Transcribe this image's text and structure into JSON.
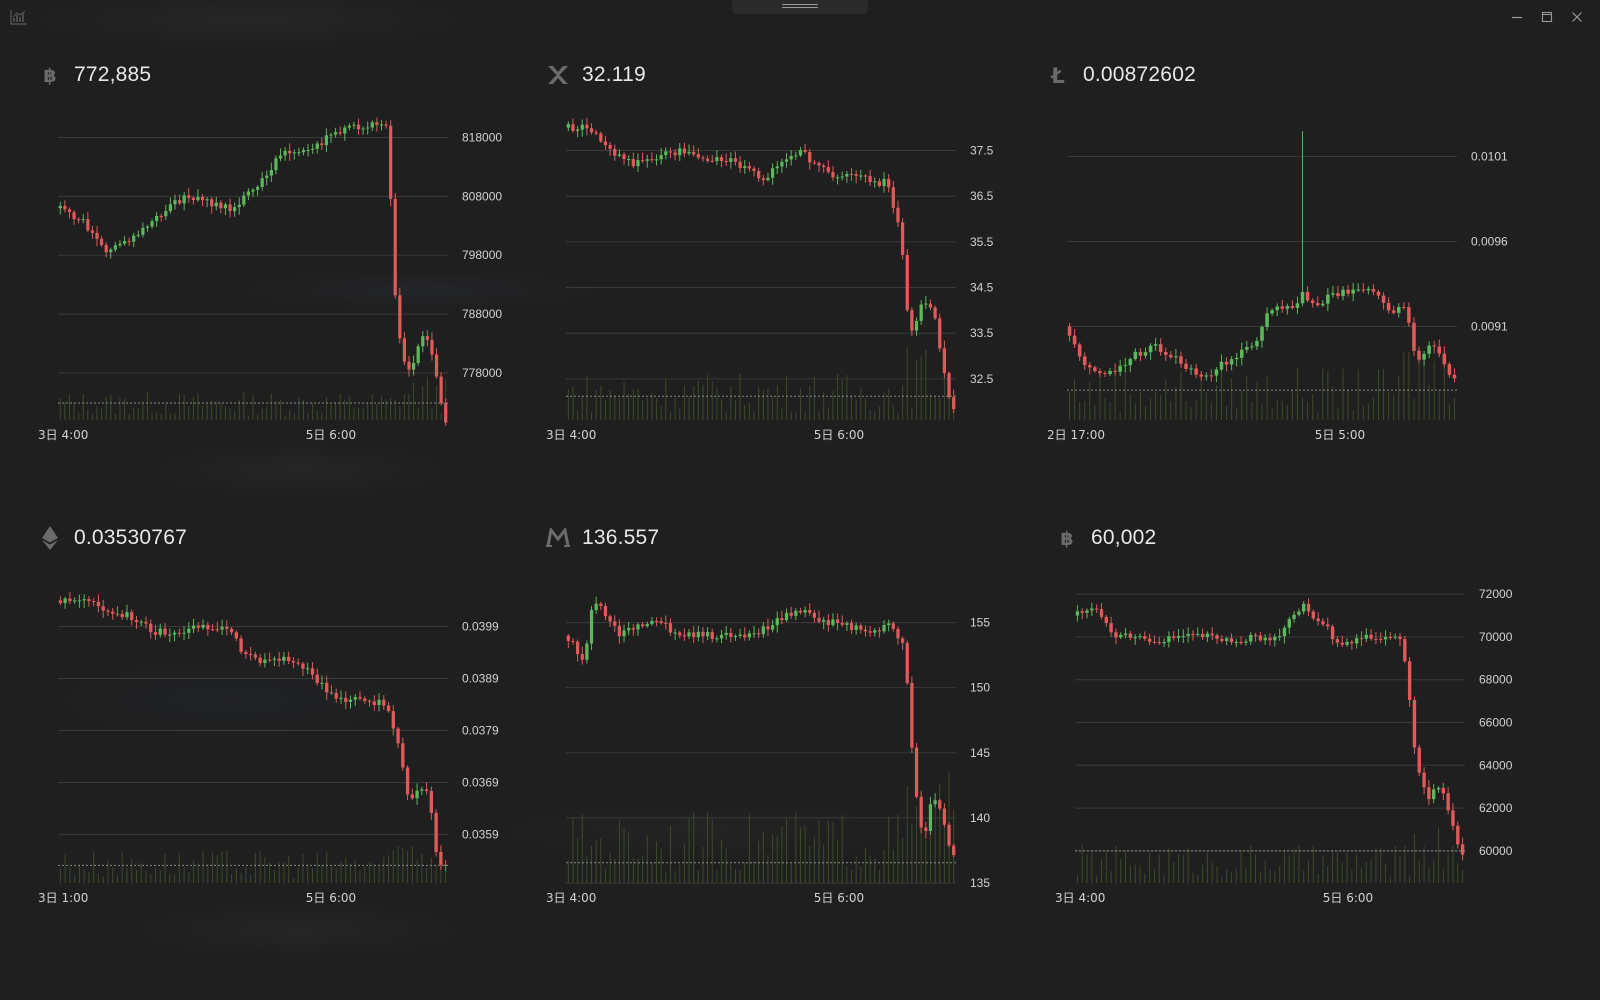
{
  "window": {
    "app_icon": "chart-icon",
    "controls": [
      "minimize-icon",
      "maximize-icon",
      "close-icon"
    ]
  },
  "colors": {
    "background": "#1f1f1f",
    "up": "#5cb85c",
    "down": "#e05a5a",
    "grid": "#3a3a3a",
    "text": "#e8e8e8",
    "volume": "#3b4a2c"
  },
  "panels": [
    {
      "icon": "bitcoin-icon",
      "price": "772,885",
      "chart_data": {
        "type": "candlestick",
        "y_ticks": [
          "818000",
          "808000",
          "798000",
          "788000",
          "778000"
        ],
        "y_tick_values": [
          818000,
          808000,
          798000,
          788000,
          778000
        ],
        "ylim": [
          770000,
          822000
        ],
        "x_ticks": [
          "3日 4:00",
          "5日 6:00"
        ],
        "last_price": 772885,
        "anchors": [
          [
            0,
            806000
          ],
          [
            5,
            804000
          ],
          [
            10,
            799000
          ],
          [
            14,
            800000
          ],
          [
            18,
            802000
          ],
          [
            22,
            805000
          ],
          [
            28,
            808000
          ],
          [
            33,
            807000
          ],
          [
            38,
            806000
          ],
          [
            44,
            810000
          ],
          [
            48,
            815000
          ],
          [
            52,
            816000
          ],
          [
            57,
            817000
          ],
          [
            61,
            819000
          ],
          [
            66,
            820000
          ],
          [
            70,
            820000
          ],
          [
            72,
            820000
          ],
          [
            73,
            795000
          ],
          [
            75,
            781000
          ],
          [
            77,
            778000
          ],
          [
            80,
            786000
          ],
          [
            82,
            779000
          ],
          [
            84,
            770000
          ]
        ],
        "volume_level": 0.3
      }
    },
    {
      "icon": "xrp-icon",
      "price": "32.119",
      "chart_data": {
        "type": "candlestick",
        "y_ticks": [
          "37.5",
          "36.5",
          "35.5",
          "34.5",
          "33.5",
          "32.5"
        ],
        "y_tick_values": [
          37.5,
          36.5,
          35.5,
          34.5,
          33.5,
          32.5
        ],
        "ylim": [
          31.6,
          38.3
        ],
        "x_ticks": [
          "3日 4:00",
          "5日 6:00"
        ],
        "last_price": 32.119,
        "anchors": [
          [
            0,
            38.0
          ],
          [
            5,
            38.0
          ],
          [
            10,
            37.4
          ],
          [
            15,
            37.2
          ],
          [
            20,
            37.4
          ],
          [
            25,
            37.5
          ],
          [
            30,
            37.3
          ],
          [
            35,
            37.3
          ],
          [
            40,
            37.0
          ],
          [
            43,
            36.9
          ],
          [
            47,
            37.3
          ],
          [
            50,
            37.5
          ],
          [
            54,
            37.2
          ],
          [
            58,
            36.9
          ],
          [
            62,
            37.0
          ],
          [
            66,
            36.8
          ],
          [
            69,
            36.8
          ],
          [
            72,
            35.8
          ],
          [
            74,
            33.4
          ],
          [
            77,
            34.3
          ],
          [
            79,
            34.0
          ],
          [
            81,
            33.0
          ],
          [
            83,
            31.8
          ]
        ],
        "volume_level": 0.5
      }
    },
    {
      "icon": "litecoin-icon",
      "price": "0.00872602",
      "chart_data": {
        "type": "candlestick",
        "y_ticks": [
          "0.0101",
          "0.0096",
          "0.0091"
        ],
        "y_tick_values": [
          0.0101,
          0.0096,
          0.0091
        ],
        "ylim": [
          0.00855,
          0.01035
        ],
        "x_ticks": [
          "2日 17:00",
          "5日 5:00"
        ],
        "last_price": 0.00872602,
        "anchors": [
          [
            0,
            0.0091
          ],
          [
            3,
            0.0089
          ],
          [
            7,
            0.0088
          ],
          [
            12,
            0.0089
          ],
          [
            17,
            0.009
          ],
          [
            22,
            0.0089
          ],
          [
            27,
            0.0088
          ],
          [
            32,
            0.0089
          ],
          [
            37,
            0.009
          ],
          [
            40,
            0.0092
          ],
          [
            44,
            0.0092
          ],
          [
            47,
            0.0093
          ],
          [
            49,
            0.0092
          ],
          [
            52,
            0.0093
          ],
          [
            56,
            0.0093
          ],
          [
            60,
            0.0093
          ],
          [
            64,
            0.0092
          ],
          [
            67,
            0.0092
          ],
          [
            69,
            0.0089
          ],
          [
            72,
            0.009
          ],
          [
            74,
            0.0089
          ],
          [
            76,
            0.0088
          ]
        ],
        "spike": {
          "index": 46,
          "high": 0.01025
        },
        "volume_level": 0.55
      }
    },
    {
      "icon": "ethereum-icon",
      "price": "0.03530767",
      "chart_data": {
        "type": "candlestick",
        "y_ticks": [
          "0.0399",
          "0.0389",
          "0.0379",
          "0.0369",
          "0.0359"
        ],
        "y_tick_values": [
          0.0399,
          0.0389,
          0.0379,
          0.0369,
          0.0359
        ],
        "ylim": [
          0.03497,
          0.04085
        ],
        "x_ticks": [
          "3日 1:00",
          "5日 6:00"
        ],
        "last_price": 0.03530767,
        "anchors": [
          [
            0,
            0.0404
          ],
          [
            5,
            0.0404
          ],
          [
            10,
            0.0402
          ],
          [
            15,
            0.0401
          ],
          [
            20,
            0.0398
          ],
          [
            25,
            0.0398
          ],
          [
            30,
            0.0399
          ],
          [
            35,
            0.0399
          ],
          [
            40,
            0.0393
          ],
          [
            45,
            0.0392
          ],
          [
            48,
            0.0393
          ],
          [
            52,
            0.0391
          ],
          [
            56,
            0.0387
          ],
          [
            60,
            0.0385
          ],
          [
            65,
            0.0385
          ],
          [
            69,
            0.0384
          ],
          [
            71,
            0.0378
          ],
          [
            74,
            0.0365
          ],
          [
            76,
            0.0368
          ],
          [
            78,
            0.0367
          ],
          [
            80,
            0.0352
          ],
          [
            81,
            0.0353
          ]
        ],
        "volume_level": 0.35
      }
    },
    {
      "icon": "monero-icon",
      "price": "136.557",
      "chart_data": {
        "type": "candlestick",
        "y_ticks": [
          "155",
          "150",
          "145",
          "140",
          "135"
        ],
        "y_tick_values": [
          155,
          150,
          145,
          140,
          135
        ],
        "ylim": [
          135,
          158.5
        ],
        "x_ticks": [
          "3日 4:00",
          "5日 6:00"
        ],
        "last_price": 136.557,
        "anchors": [
          [
            0,
            154
          ],
          [
            4,
            152
          ],
          [
            6,
            157
          ],
          [
            9,
            155
          ],
          [
            12,
            154
          ],
          [
            16,
            155
          ],
          [
            20,
            155
          ],
          [
            25,
            154
          ],
          [
            30,
            154
          ],
          [
            35,
            154
          ],
          [
            40,
            154
          ],
          [
            45,
            155
          ],
          [
            50,
            156
          ],
          [
            55,
            155
          ],
          [
            60,
            155
          ],
          [
            65,
            154
          ],
          [
            70,
            155
          ],
          [
            73,
            153
          ],
          [
            75,
            143
          ],
          [
            77,
            138
          ],
          [
            79,
            142
          ],
          [
            81,
            140
          ],
          [
            83,
            137
          ]
        ],
        "volume_level": 0.75
      }
    },
    {
      "icon": "bitcoin-icon",
      "price": "60,002",
      "chart_data": {
        "type": "candlestick",
        "y_ticks": [
          "72000",
          "70000",
          "68000",
          "66000",
          "64000",
          "62000",
          "60000"
        ],
        "y_tick_values": [
          72000,
          70000,
          68000,
          66000,
          64000,
          62000,
          60000
        ],
        "ylim": [
          58500,
          72800
        ],
        "x_ticks": [
          "3日 4:00",
          "5日 6:00"
        ],
        "last_price": 60002,
        "anchors": [
          [
            0,
            71000
          ],
          [
            4,
            71500
          ],
          [
            8,
            70000
          ],
          [
            12,
            70000
          ],
          [
            17,
            69800
          ],
          [
            22,
            70000
          ],
          [
            27,
            70000
          ],
          [
            32,
            69800
          ],
          [
            37,
            70000
          ],
          [
            42,
            70000
          ],
          [
            47,
            71500
          ],
          [
            52,
            70500
          ],
          [
            55,
            69500
          ],
          [
            60,
            70000
          ],
          [
            65,
            70000
          ],
          [
            68,
            69800
          ],
          [
            71,
            64000
          ],
          [
            73,
            62500
          ],
          [
            76,
            63000
          ],
          [
            78,
            61500
          ],
          [
            80,
            60000
          ]
        ],
        "volume_level": 0.4
      }
    }
  ]
}
